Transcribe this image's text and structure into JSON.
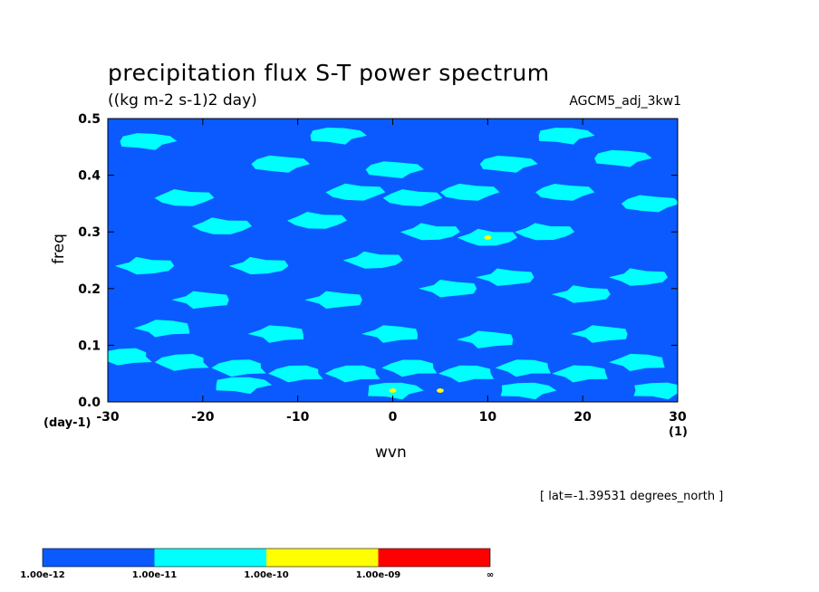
{
  "chart_data": {
    "type": "heatmap",
    "title": "precipitation flux S-T power spectrum",
    "subtitle": "((kg m-2 s-1)2 day)",
    "run_label": "AGCM5_adj_3kw1",
    "xlabel": "wvn",
    "ylabel": "freq",
    "x_unit": "(1)",
    "y_unit": "(day-1)",
    "annotation": "[ lat=-1.39531 degrees_north ]",
    "xlim": [
      -30,
      30
    ],
    "ylim": [
      0.0,
      0.5
    ],
    "x_ticks": [
      "-30",
      "-20",
      "-10",
      "0",
      "10",
      "20",
      "30"
    ],
    "x_tick_values": [
      -30,
      -20,
      -10,
      0,
      10,
      20,
      30
    ],
    "y_ticks": [
      "0.0",
      "0.1",
      "0.2",
      "0.3",
      "0.4",
      "0.5"
    ],
    "y_tick_values": [
      0.0,
      0.1,
      0.2,
      0.3,
      0.4,
      0.5
    ],
    "colorbar": {
      "levels": [
        "1.00e-12",
        "1.00e-11",
        "1.00e-10",
        "1.00e-09",
        "∞"
      ],
      "colors": [
        "#0a5aff",
        "#00ffff",
        "#ffff00",
        "#ff0000"
      ]
    },
    "background_color": "#0a5aff",
    "region_points": [
      {
        "level": 1,
        "x": -28,
        "y": 0.08
      },
      {
        "level": 1,
        "x": -22,
        "y": 0.07
      },
      {
        "level": 1,
        "x": -16,
        "y": 0.06
      },
      {
        "level": 1,
        "x": -10,
        "y": 0.05
      },
      {
        "level": 1,
        "x": -4,
        "y": 0.05
      },
      {
        "level": 1,
        "x": 2,
        "y": 0.06
      },
      {
        "level": 1,
        "x": 8,
        "y": 0.05
      },
      {
        "level": 1,
        "x": 14,
        "y": 0.06
      },
      {
        "level": 1,
        "x": 20,
        "y": 0.05
      },
      {
        "level": 1,
        "x": 26,
        "y": 0.07
      },
      {
        "level": 1,
        "x": -24,
        "y": 0.13
      },
      {
        "level": 1,
        "x": -12,
        "y": 0.12
      },
      {
        "level": 1,
        "x": 0,
        "y": 0.12
      },
      {
        "level": 1,
        "x": 10,
        "y": 0.11
      },
      {
        "level": 1,
        "x": 22,
        "y": 0.12
      },
      {
        "level": 1,
        "x": -20,
        "y": 0.18
      },
      {
        "level": 1,
        "x": -6,
        "y": 0.18
      },
      {
        "level": 1,
        "x": 6,
        "y": 0.2
      },
      {
        "level": 1,
        "x": 12,
        "y": 0.22
      },
      {
        "level": 1,
        "x": 20,
        "y": 0.19
      },
      {
        "level": 1,
        "x": 26,
        "y": 0.22
      },
      {
        "level": 1,
        "x": -26,
        "y": 0.24
      },
      {
        "level": 1,
        "x": -14,
        "y": 0.24
      },
      {
        "level": 1,
        "x": -2,
        "y": 0.25
      },
      {
        "level": 1,
        "x": 4,
        "y": 0.3
      },
      {
        "level": 1,
        "x": 10,
        "y": 0.29
      },
      {
        "level": 1,
        "x": 16,
        "y": 0.3
      },
      {
        "level": 1,
        "x": -18,
        "y": 0.31
      },
      {
        "level": 1,
        "x": -8,
        "y": 0.32
      },
      {
        "level": 1,
        "x": -22,
        "y": 0.36
      },
      {
        "level": 1,
        "x": -4,
        "y": 0.37
      },
      {
        "level": 1,
        "x": 2,
        "y": 0.36
      },
      {
        "level": 1,
        "x": 8,
        "y": 0.37
      },
      {
        "level": 1,
        "x": 18,
        "y": 0.37
      },
      {
        "level": 1,
        "x": 27,
        "y": 0.35
      },
      {
        "level": 1,
        "x": -12,
        "y": 0.42
      },
      {
        "level": 1,
        "x": 0,
        "y": 0.41
      },
      {
        "level": 1,
        "x": 12,
        "y": 0.42
      },
      {
        "level": 1,
        "x": 24,
        "y": 0.43
      },
      {
        "level": 1,
        "x": -26,
        "y": 0.46
      },
      {
        "level": 1,
        "x": -6,
        "y": 0.47
      },
      {
        "level": 1,
        "x": 18,
        "y": 0.47
      },
      {
        "level": 1,
        "x": -16,
        "y": 0.03
      },
      {
        "level": 1,
        "x": 0,
        "y": 0.02
      },
      {
        "level": 1,
        "x": 14,
        "y": 0.02
      },
      {
        "level": 1,
        "x": 28,
        "y": 0.02
      },
      {
        "level": 2,
        "x": 10,
        "y": 0.29
      },
      {
        "level": 2,
        "x": 0,
        "y": 0.02
      },
      {
        "level": 2,
        "x": 5,
        "y": 0.02
      }
    ]
  }
}
